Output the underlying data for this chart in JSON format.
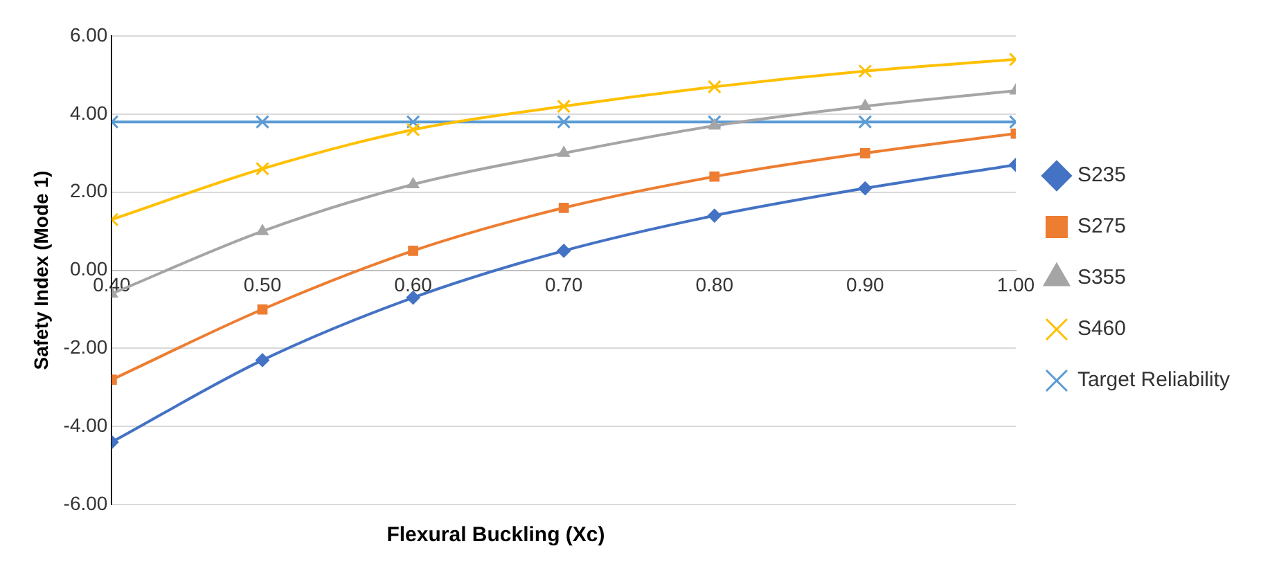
{
  "chart_data": {
    "type": "line",
    "xlabel": "Flexural Buckling (Xc)",
    "ylabel": "Safety Index (Mode 1)",
    "x": [
      0.4,
      0.5,
      0.6,
      0.7,
      0.8,
      0.9,
      1.0
    ],
    "xlim": [
      0.4,
      1.0
    ],
    "xticks": [
      {
        "value": 0.4,
        "label": "0.40"
      },
      {
        "value": 0.5,
        "label": "0.50"
      },
      {
        "value": 0.6,
        "label": "0.60"
      },
      {
        "value": 0.7,
        "label": "0.70"
      },
      {
        "value": 0.8,
        "label": "0.80"
      },
      {
        "value": 0.9,
        "label": "0.90"
      },
      {
        "value": 1.0,
        "label": "1.00"
      }
    ],
    "ylim": [
      -6,
      6
    ],
    "yticks": [
      {
        "value": -6,
        "label": "-6.00"
      },
      {
        "value": -4,
        "label": "-4.00"
      },
      {
        "value": -2,
        "label": "-2.00"
      },
      {
        "value": 0,
        "label": "0.00"
      },
      {
        "value": 2,
        "label": "2.00"
      },
      {
        "value": 4,
        "label": "4.00"
      },
      {
        "value": 6,
        "label": "6.00"
      }
    ],
    "grid": "y",
    "legend": "right",
    "series": [
      {
        "name": "S235",
        "color": "#4472c4",
        "marker": "diamond",
        "values": [
          -4.4,
          -2.3,
          -0.7,
          0.5,
          1.4,
          2.1,
          2.7
        ]
      },
      {
        "name": "S275",
        "color": "#ed7d31",
        "marker": "square",
        "values": [
          -2.8,
          -1.0,
          0.5,
          1.6,
          2.4,
          3.0,
          3.5
        ]
      },
      {
        "name": "S355",
        "color": "#a5a5a5",
        "marker": "triangle",
        "values": [
          -0.6,
          1.0,
          2.2,
          3.0,
          3.7,
          4.2,
          4.6
        ]
      },
      {
        "name": "S460",
        "color": "#ffc000",
        "marker": "cross",
        "values": [
          1.3,
          2.6,
          3.6,
          4.2,
          4.7,
          5.1,
          5.4
        ]
      },
      {
        "name": "Target Reliability",
        "color": "#5b9bd5",
        "marker": "cross",
        "values": [
          3.8,
          3.8,
          3.8,
          3.8,
          3.8,
          3.8,
          3.8
        ]
      }
    ]
  }
}
